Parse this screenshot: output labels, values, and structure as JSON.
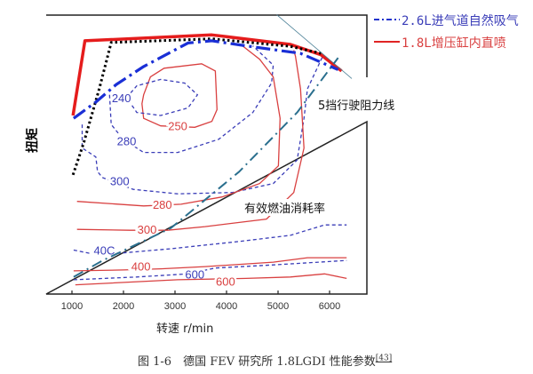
{
  "chart_data": {
    "type": "line",
    "title": "",
    "xlabel": "转速 r/min",
    "ylabel": "扭矩",
    "xlim": [
      550,
      6600
    ],
    "ylim": [
      0,
      1
    ],
    "x_ticks": [
      1000,
      2000,
      3000,
      4000,
      5000,
      6000
    ],
    "x_tick_labels": [
      "1000",
      "2000",
      "3000",
      "4000",
      "5000",
      "6000"
    ],
    "grid": false,
    "legend_position": "top-right-outside",
    "legend": [
      {
        "label": "2.6L进气道自然吸气",
        "style": "dash-dot",
        "color": "#2233cc"
      },
      {
        "label": "1.8L增压缸内直喷",
        "style": "solid",
        "color": "#e02424"
      }
    ],
    "annotations": [
      {
        "text": "5挡行驶阻力线"
      },
      {
        "text": "有效燃油消耗率"
      }
    ],
    "series": [
      {
        "id": "full-load-1.8L",
        "style": "solid-thick",
        "color": "#e51c1c",
        "points": [
          [
            1020,
            0.638
          ],
          [
            1252,
            0.905
          ],
          [
            3715,
            0.926
          ],
          [
            5239,
            0.892
          ],
          [
            5835,
            0.855
          ],
          [
            6232,
            0.797
          ]
        ]
      },
      {
        "id": "full-load-black-dotted",
        "style": "dotted-thick",
        "color": "#000000",
        "points": [
          [
            1020,
            0.426
          ],
          [
            1232,
            0.543
          ],
          [
            1530,
            0.733
          ],
          [
            1762,
            0.899
          ],
          [
            3715,
            0.912
          ],
          [
            5239,
            0.885
          ],
          [
            5835,
            0.86
          ]
        ]
      },
      {
        "id": "full-load-2.6L",
        "style": "dash-dot-thick",
        "color": "#1a2fd6",
        "points": [
          [
            1033,
            0.628
          ],
          [
            1464,
            0.686
          ],
          [
            1861,
            0.749
          ],
          [
            2391,
            0.813
          ],
          [
            3252,
            0.897
          ],
          [
            3715,
            0.905
          ],
          [
            4378,
            0.887
          ],
          [
            5437,
            0.86
          ],
          [
            6166,
            0.802
          ]
        ]
      },
      {
        "id": "thin-gray-line",
        "style": "solid-thin",
        "color": "#4a7f95",
        "points": [
          [
            4974,
            0.998
          ],
          [
            6431,
            0.77
          ]
        ]
      },
      {
        "id": "5th-gear-road-load",
        "style": "dash-dot",
        "color": "#2a6f8e",
        "points": [
          [
            1033,
            0.061
          ],
          [
            1596,
            0.12
          ],
          [
            2921,
            0.236
          ],
          [
            4245,
            0.437
          ],
          [
            5371,
            0.649
          ],
          [
            6166,
            0.844
          ]
        ]
      }
    ],
    "contours": [
      {
        "engine": "1.8L",
        "level": "250",
        "color": "#d94040",
        "style": "solid",
        "closed": true,
        "points": [
          [
            2391,
            0.712
          ],
          [
            2523,
            0.776
          ],
          [
            2788,
            0.807
          ],
          [
            3517,
            0.823
          ],
          [
            3782,
            0.797
          ],
          [
            3815,
            0.659
          ],
          [
            3715,
            0.617
          ],
          [
            3384,
            0.596
          ],
          [
            2722,
            0.601
          ],
          [
            2391,
            0.628
          ],
          [
            2358,
            0.68
          ]
        ],
        "label_at": [
          3053,
          0.601
        ]
      },
      {
        "engine": "2.6L",
        "level": "240",
        "color": "#3a3db8",
        "style": "dashed",
        "closed": true,
        "points": [
          [
            2060,
            0.702
          ],
          [
            2258,
            0.744
          ],
          [
            2722,
            0.767
          ],
          [
            3186,
            0.754
          ],
          [
            3437,
            0.712
          ],
          [
            3252,
            0.665
          ],
          [
            2722,
            0.638
          ],
          [
            2258,
            0.649
          ]
        ],
        "label_at": [
          1960,
          0.702
        ]
      },
      {
        "engine": "2.6L",
        "level": "280",
        "color": "#3a3db8",
        "style": "dashed",
        "closed": false,
        "points": [
          [
            1729,
            0.712
          ],
          [
            1762,
            0.606
          ],
          [
            1993,
            0.553
          ],
          [
            2391,
            0.506
          ],
          [
            3053,
            0.506
          ],
          [
            3848,
            0.553
          ],
          [
            4510,
            0.649
          ],
          [
            4874,
            0.754
          ],
          [
            4907,
            0.818
          ],
          [
            4510,
            0.887
          ]
        ],
        "label_at": [
          2060,
          0.548
        ]
      },
      {
        "engine": "2.6L",
        "level": "300",
        "color": "#3a3db8",
        "style": "dashed",
        "closed": false,
        "points": [
          [
            1199,
            0.606
          ],
          [
            1199,
            0.522
          ],
          [
            1464,
            0.49
          ],
          [
            1497,
            0.437
          ],
          [
            1596,
            0.416
          ],
          [
            2192,
            0.374
          ],
          [
            3053,
            0.358
          ],
          [
            4113,
            0.363
          ],
          [
            4907,
            0.395
          ],
          [
            5371,
            0.479
          ],
          [
            5503,
            0.628
          ],
          [
            5570,
            0.733
          ],
          [
            5868,
            0.85
          ]
        ],
        "label_at": [
          1927,
          0.405
        ]
      },
      {
        "engine": "1.8L",
        "level": "280",
        "color": "#d94040",
        "style": "solid",
        "closed": false,
        "points": [
          [
            1099,
            0.331
          ],
          [
            2391,
            0.315
          ],
          [
            3119,
            0.321
          ],
          [
            3914,
            0.347
          ],
          [
            4643,
            0.395
          ],
          [
            5007,
            0.458
          ],
          [
            5040,
            0.628
          ],
          [
            4907,
            0.776
          ],
          [
            4643,
            0.839
          ],
          [
            4311,
            0.887
          ]
        ],
        "label_at": [
          2755,
          0.321
        ]
      },
      {
        "engine": "1.8L",
        "level": "300",
        "color": "#d94040",
        "style": "solid",
        "closed": false,
        "points": [
          [
            1099,
            0.231
          ],
          [
            2126,
            0.228
          ],
          [
            2854,
            0.228
          ],
          [
            3583,
            0.241
          ],
          [
            4775,
            0.268
          ],
          [
            5305,
            0.363
          ],
          [
            5503,
            0.522
          ],
          [
            5437,
            0.733
          ],
          [
            5338,
            0.85
          ],
          [
            5305,
            0.871
          ]
        ],
        "label_at": [
          2457,
          0.231
        ]
      },
      {
        "engine": "2.6L",
        "level": "40C",
        "color": "#3a3db8",
        "style": "dashed",
        "closed": false,
        "points": [
          [
            1033,
            0.157
          ],
          [
            1331,
            0.146
          ],
          [
            1927,
            0.146
          ],
          [
            2921,
            0.162
          ],
          [
            4245,
            0.188
          ],
          [
            5239,
            0.21
          ],
          [
            5901,
            0.247
          ],
          [
            6331,
            0.247
          ]
        ],
        "label_at": [
          1629,
          0.157
        ]
      },
      {
        "engine": "1.8L",
        "level": "400",
        "color": "#d94040",
        "style": "solid",
        "closed": false,
        "points": [
          [
            1033,
            0.083
          ],
          [
            1993,
            0.086
          ],
          [
            2722,
            0.09
          ],
          [
            3583,
            0.098
          ],
          [
            4907,
            0.114
          ],
          [
            5570,
            0.13
          ],
          [
            6331,
            0.13
          ]
        ],
        "label_at": [
          2338,
          0.1
        ]
      },
      {
        "engine": "2.6L",
        "level": "600",
        "color": "#3a3db8",
        "style": "dashed",
        "closed": false,
        "points": [
          [
            1033,
            0.051
          ],
          [
            2258,
            0.061
          ],
          [
            3252,
            0.072
          ],
          [
            3782,
            0.093
          ],
          [
            4907,
            0.104
          ],
          [
            6331,
            0.12
          ]
        ],
        "label_at": [
          3384,
          0.072
        ]
      },
      {
        "engine": "1.8L",
        "level": "600",
        "color": "#d94040",
        "style": "solid",
        "closed": false,
        "points": [
          [
            1066,
            0.033
          ],
          [
            3053,
            0.051
          ],
          [
            4378,
            0.056
          ],
          [
            5239,
            0.061
          ],
          [
            5901,
            0.072
          ],
          [
            6331,
            0.056
          ]
        ],
        "label_at": [
          3980,
          0.046
        ]
      }
    ]
  },
  "caption": {
    "text": "图 1-6　德国 FEV 研究所 1.8LGDI 性能参数",
    "ref": "[43]"
  }
}
